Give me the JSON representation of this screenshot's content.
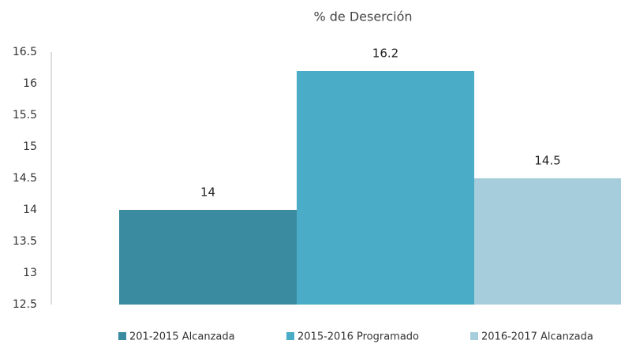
{
  "chart_data": {
    "type": "bar",
    "title": "% de Deserción",
    "series": [
      {
        "name": "201-2015 Alcanzada",
        "color": "#3a8aa0",
        "values": [
          14
        ]
      },
      {
        "name": "2015-2016 Programado",
        "color": "#4aacc6",
        "values": [
          16.2
        ]
      },
      {
        "name": "2016-2017 Alcanzada",
        "color": "#a6cddb",
        "values": [
          14.5
        ]
      }
    ],
    "ylim": [
      12.5,
      16.5
    ],
    "yticks": [
      12.5,
      13,
      13.5,
      14,
      14.5,
      15,
      15.5,
      16,
      16.5
    ],
    "grid": false,
    "legend": "bottom"
  }
}
